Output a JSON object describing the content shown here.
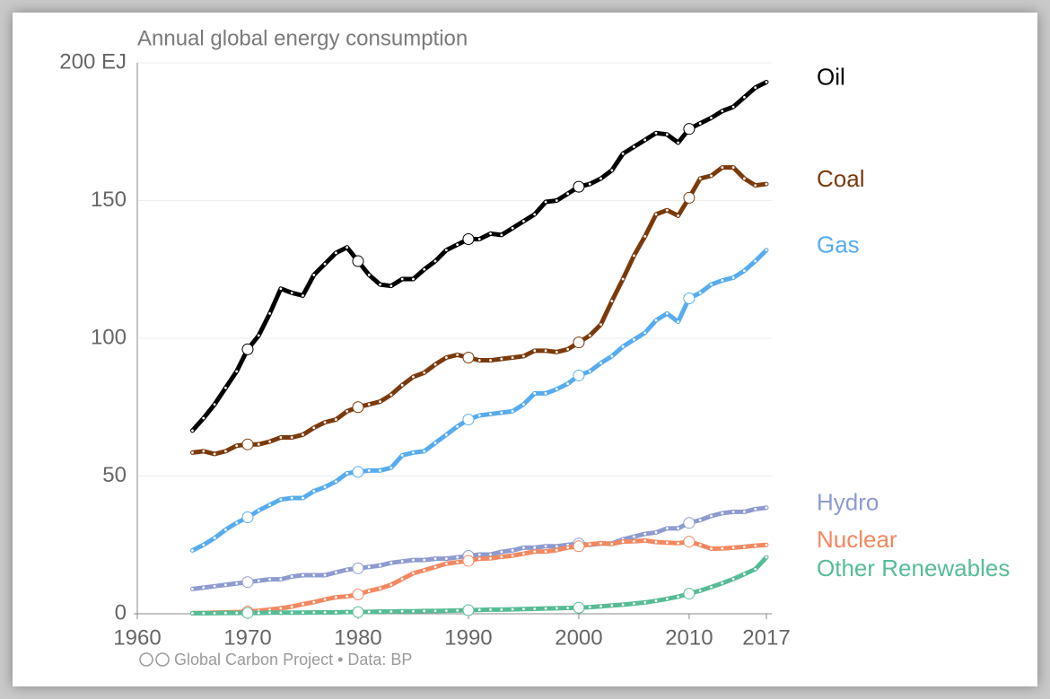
{
  "chart_data": {
    "type": "line",
    "title": "Annual global energy consumption",
    "source": "Global Carbon Project • Data: BP",
    "x": [
      1965,
      1966,
      1967,
      1968,
      1969,
      1970,
      1971,
      1972,
      1973,
      1974,
      1975,
      1976,
      1977,
      1978,
      1979,
      1980,
      1981,
      1982,
      1983,
      1984,
      1985,
      1986,
      1987,
      1988,
      1989,
      1990,
      1991,
      1992,
      1993,
      1994,
      1995,
      1996,
      1997,
      1998,
      1999,
      2000,
      2001,
      2002,
      2003,
      2004,
      2005,
      2006,
      2007,
      2008,
      2009,
      2010,
      2011,
      2012,
      2013,
      2014,
      2015,
      2016,
      2017
    ],
    "xlim": [
      1960,
      2017
    ],
    "xticks": [
      1960,
      1970,
      1980,
      1990,
      2000,
      2010,
      2017
    ],
    "ylim": [
      0,
      200
    ],
    "yticks": [
      0,
      50,
      100,
      150,
      {
        "value": 200,
        "label": "200 EJ"
      }
    ],
    "grid": true,
    "series": [
      {
        "name": "Oil",
        "color": "#000000",
        "values": [
          66.5,
          71,
          76,
          82,
          88,
          96,
          101,
          109,
          118,
          116.5,
          115.5,
          123,
          127,
          131,
          133,
          128,
          123,
          119.5,
          119,
          121.5,
          121.5,
          125,
          128,
          132,
          134,
          136,
          136,
          138,
          137.5,
          140,
          142.5,
          145,
          149.5,
          150,
          152.5,
          155,
          156,
          158,
          161,
          167,
          169.5,
          172,
          174.5,
          174,
          171,
          176,
          178,
          180,
          182.5,
          184,
          187.5,
          191,
          193
        ]
      },
      {
        "name": "Coal",
        "color": "#7b3a0c",
        "values": [
          58.5,
          59,
          58,
          59,
          61,
          61.5,
          61.5,
          62.5,
          64,
          64,
          65,
          67.5,
          69.5,
          70.5,
          73.5,
          75,
          76,
          77,
          79.5,
          83,
          86,
          87.5,
          90.5,
          93,
          94,
          93,
          92,
          92,
          92.5,
          93,
          93.5,
          95.5,
          95.5,
          95,
          96,
          98.5,
          101,
          105,
          113.5,
          121.5,
          130,
          137,
          145,
          146.5,
          144.5,
          151,
          158,
          159,
          162,
          162,
          158,
          155.5,
          156
        ]
      },
      {
        "name": "Gas",
        "color": "#56acef",
        "values": [
          23,
          25,
          27.5,
          30.5,
          33,
          35,
          37.5,
          39.5,
          41.5,
          42,
          42,
          44.5,
          46,
          48,
          51,
          51.5,
          52,
          52,
          53,
          57.5,
          58.5,
          59,
          62,
          65,
          68,
          70.5,
          72,
          72.5,
          73,
          73.5,
          76,
          80,
          80,
          81.5,
          83.5,
          86.5,
          88,
          91,
          93.5,
          97,
          99.5,
          102,
          106.5,
          109,
          106,
          114.5,
          116.5,
          119.5,
          121,
          122,
          124.5,
          128,
          132
        ]
      },
      {
        "name": "Hydro",
        "color": "#8d9bd0",
        "values": [
          9,
          9.5,
          10,
          10.5,
          11,
          11.5,
          12,
          12.5,
          12.5,
          13.5,
          14,
          14,
          14,
          15,
          16,
          16.5,
          17,
          17.5,
          18.5,
          19,
          19.5,
          19.5,
          20,
          20,
          20.5,
          21,
          21.5,
          21.5,
          22.5,
          23,
          24,
          24,
          24.5,
          24.5,
          25,
          25.5,
          25,
          25.5,
          25.5,
          27,
          28,
          29,
          29.5,
          31,
          31,
          33,
          34,
          35.5,
          36.5,
          37,
          37,
          38,
          38.5
        ]
      },
      {
        "name": "Nuclear",
        "color": "#f4875f",
        "values": [
          0.2,
          0.3,
          0.4,
          0.5,
          0.6,
          0.8,
          1.1,
          1.5,
          2,
          2.6,
          3.5,
          4.2,
          5.2,
          6,
          6.3,
          7,
          8.3,
          9.2,
          10.5,
          12.6,
          14.7,
          15.8,
          17,
          18.2,
          18.7,
          19.2,
          20,
          20.1,
          20.7,
          21.1,
          21.8,
          22.6,
          22.6,
          23.1,
          24,
          24.5,
          25.2,
          25.6,
          25.3,
          26.2,
          26.3,
          26.6,
          26,
          25.8,
          25.6,
          26.2,
          25,
          23.6,
          23.7,
          24,
          24.3,
          24.7,
          25
        ]
      },
      {
        "name": "Other Renewables",
        "color": "#56bc95",
        "values": [
          0.2,
          0.2,
          0.2,
          0.3,
          0.3,
          0.3,
          0.3,
          0.4,
          0.4,
          0.4,
          0.4,
          0.5,
          0.5,
          0.5,
          0.6,
          0.6,
          0.7,
          0.8,
          0.8,
          0.9,
          0.9,
          1,
          1,
          1.1,
          1.2,
          1.3,
          1.4,
          1.5,
          1.5,
          1.6,
          1.7,
          1.8,
          1.9,
          2,
          2.1,
          2.2,
          2.4,
          2.7,
          3,
          3.3,
          3.7,
          4.1,
          4.7,
          5.4,
          6.2,
          7.3,
          8.4,
          9.7,
          11.1,
          12.6,
          14.4,
          16.2,
          20.5
        ]
      }
    ]
  }
}
